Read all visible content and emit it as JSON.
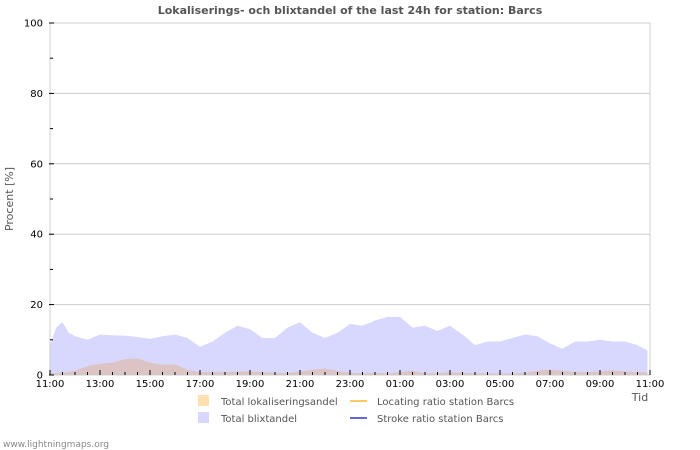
{
  "chart_data": {
    "type": "area",
    "title": "Lokaliserings- och blixtandel of the last 24h for station: Barcs",
    "xlabel": "Tid",
    "ylabel": "Procent   [%]",
    "ylim": [
      0,
      100
    ],
    "yticks": [
      0,
      20,
      40,
      60,
      80,
      100
    ],
    "xticks": [
      "11:00",
      "13:00",
      "15:00",
      "17:00",
      "19:00",
      "21:00",
      "23:00",
      "01:00",
      "03:00",
      "05:00",
      "07:00",
      "09:00",
      "11:00"
    ],
    "grid": true,
    "legend_position": "bottom",
    "x_hours": [
      0,
      0.25,
      0.5,
      0.75,
      1,
      1.5,
      2,
      2.5,
      3,
      3.5,
      4,
      4.5,
      5,
      5.5,
      6,
      6.5,
      7,
      7.5,
      8,
      8.5,
      9,
      9.5,
      10,
      10.5,
      11,
      11.5,
      12,
      12.5,
      13,
      13.5,
      14,
      14.5,
      15,
      15.5,
      16,
      16.5,
      17,
      17.5,
      18,
      18.5,
      19,
      19.5,
      20,
      20.5,
      21,
      21.5,
      22,
      22.5,
      23,
      23.5,
      23.9
    ],
    "series": [
      {
        "name": "Total lokaliseringsandel",
        "style": "area",
        "color": "#ffe0b0",
        "values": [
          0.5,
          0.5,
          0.6,
          0.8,
          1.2,
          2.5,
          3.2,
          3.5,
          4.5,
          4.7,
          3.5,
          3.0,
          3.0,
          1.5,
          0.8,
          0.8,
          0.8,
          1.0,
          1.0,
          0.8,
          0.6,
          0.6,
          1.0,
          1.5,
          1.8,
          1.2,
          0.6,
          0.5,
          0.6,
          0.5,
          0.8,
          1.2,
          0.5,
          0.5,
          0.8,
          0.6,
          0.5,
          0.5,
          0.4,
          0.5,
          0.6,
          1.2,
          1.5,
          1.2,
          0.8,
          0.8,
          1.0,
          1.3,
          1.0,
          0.8,
          0.8
        ]
      },
      {
        "name": "Total blixtandel",
        "style": "area",
        "color": "#d8d8ff",
        "values": [
          8.5,
          13.5,
          15.0,
          12.0,
          11.0,
          10.0,
          11.5,
          11.3,
          11.2,
          10.8,
          10.3,
          11.0,
          11.5,
          10.5,
          8.0,
          9.5,
          12.0,
          14.0,
          13.0,
          10.5,
          10.5,
          13.5,
          15.0,
          12.0,
          10.5,
          12.0,
          14.5,
          14.0,
          15.5,
          16.5,
          16.5,
          13.5,
          14.0,
          12.5,
          14.0,
          11.5,
          8.5,
          9.5,
          9.5,
          10.5,
          11.5,
          11.0,
          9.0,
          7.5,
          9.5,
          9.5,
          10.0,
          9.5,
          9.5,
          8.5,
          7.0
        ]
      },
      {
        "name": "Locating ratio station Barcs",
        "style": "line",
        "color": "#ffc864",
        "values": []
      },
      {
        "name": "Stroke ratio station Barcs",
        "style": "line",
        "color": "#6464dc",
        "values": []
      }
    ]
  },
  "chart": {
    "title": "Lokaliserings- och blixtandel of the last 24h for station: Barcs",
    "y_axis_label": "Procent   [%]",
    "x_axis_label": "Tid",
    "y_tick_labels": [
      "0",
      "20",
      "40",
      "60",
      "80",
      "100"
    ],
    "x_tick_labels": [
      "11:00",
      "13:00",
      "15:00",
      "17:00",
      "19:00",
      "21:00",
      "23:00",
      "01:00",
      "03:00",
      "05:00",
      "07:00",
      "09:00",
      "11:00"
    ]
  },
  "legend": {
    "items": [
      {
        "label": "Total lokaliseringsandel",
        "kind": "swatch",
        "color": "#ffe0b0"
      },
      {
        "label": "Total blixtandel",
        "kind": "swatch",
        "color": "#d8d8ff"
      },
      {
        "label": "Locating ratio station Barcs",
        "kind": "line",
        "color": "#ffc864"
      },
      {
        "label": "Stroke ratio station Barcs",
        "kind": "line",
        "color": "#6464dc"
      }
    ]
  },
  "footer": {
    "credit": "www.lightningmaps.org"
  },
  "colors": {
    "grid": "#cccccc",
    "overlap_fill": "#dcc4c4"
  }
}
